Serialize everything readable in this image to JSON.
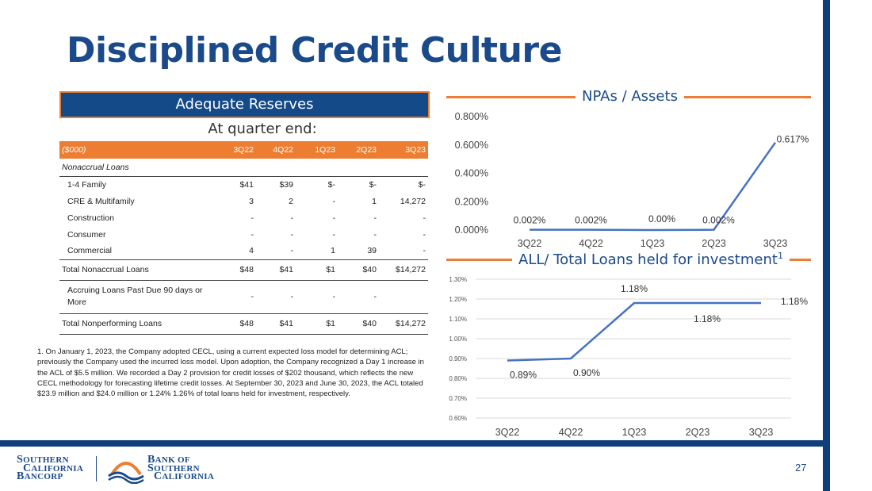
{
  "title": "Disciplined Credit Culture",
  "reserves_label": "Adequate Reserves",
  "quarter_end_label": "At quarter end:",
  "table": {
    "header": [
      "($000)",
      "3Q22",
      "4Q22",
      "1Q23",
      "2Q23",
      "3Q23"
    ],
    "section_label": "Nonaccrual Loans",
    "rows": [
      {
        "label": "1-4 Family",
        "values": [
          "$41",
          "$39",
          "$-",
          "$-",
          "$-"
        ]
      },
      {
        "label": "CRE & Multifamily",
        "values": [
          "3",
          "2",
          "-",
          "1",
          "14,272"
        ]
      },
      {
        "label": "Construction",
        "values": [
          "-",
          "-",
          "-",
          "-",
          "-"
        ]
      },
      {
        "label": "Consumer",
        "values": [
          "-",
          "-",
          "-",
          "-",
          "-"
        ]
      },
      {
        "label": "Commercial",
        "values": [
          "4",
          "-",
          "1",
          "39",
          "-"
        ]
      }
    ],
    "total_nonaccrual": {
      "label": "Total Nonaccrual Loans",
      "values": [
        "$48",
        "$41",
        "$1",
        "$40",
        "$14,272"
      ]
    },
    "accruing": {
      "label": "Accruing Loans Past Due 90 days or More",
      "values": [
        "-",
        "-",
        "-",
        "-",
        ""
      ]
    },
    "total_nonperforming": {
      "label": "Total Nonperforming Loans",
      "values": [
        "$48",
        "$41",
        "$1",
        "$40",
        "$14,272"
      ]
    }
  },
  "footnote": "1. On January 1, 2023, the Company adopted CECL, using a current expected loss model for determining ACL; previously the Company used the incurred loss model. Upon adoption, the Company recognized a Day 1 increase in the ACL of $5.5 million. We recorded a Day 2 provision for credit losses of $202 thousand, which reflects the new CECL methodology for forecasting lifetime credit losses. At September 30, 2023 and June 30, 2023, the ACL totaled $23.9 million and $24.0 million or 1.24% 1.26% of total loans held for investment, respectively.",
  "chart_data": [
    {
      "type": "line",
      "title": "NPAs / Assets",
      "categories": [
        "3Q22",
        "4Q22",
        "1Q23",
        "2Q23",
        "3Q23"
      ],
      "values": [
        0.002,
        0.002,
        0.0,
        0.002,
        0.617
      ],
      "data_labels": [
        "0.002%",
        "0.002%",
        "0.00%",
        "0.002%",
        "0.617%"
      ],
      "yticks": [
        "0.000%",
        "0.200%",
        "0.400%",
        "0.600%",
        "0.800%"
      ],
      "ylim": [
        0,
        0.8
      ],
      "color": "#4472c4"
    },
    {
      "type": "line",
      "title": "ALL/ Total Loans held for investment",
      "title_superscript": "1",
      "categories": [
        "3Q22",
        "4Q22",
        "1Q23",
        "2Q23",
        "3Q23"
      ],
      "values": [
        0.89,
        0.9,
        1.18,
        1.18,
        1.18
      ],
      "data_labels": [
        "0.89%",
        "0.90%",
        "1.18%",
        "1.18%",
        "1.18%"
      ],
      "yticks": [
        "0.60%",
        "0.70%",
        "0.80%",
        "0.90%",
        "1.00%",
        "1.10%",
        "1.20%",
        "1.30%"
      ],
      "ylim": [
        0.6,
        1.3
      ],
      "grid": true,
      "color": "#4472c4"
    }
  ],
  "page_number": "27",
  "logo_left": {
    "line1_cap": "S",
    "line1": "OUTHERN",
    "line2_cap": "C",
    "line2": "ALIFORNIA",
    "line3_cap": "B",
    "line3": "ANCORP"
  },
  "logo_right": {
    "line1_cap": "B",
    "line1": "ANK OF",
    "line2_cap": "S",
    "line2": "OUTHERN",
    "line3_cap": "C",
    "line3": "ALIFORNIA"
  },
  "colors": {
    "navy": "#134a87",
    "orange": "#ed7d31",
    "line": "#4472c4"
  }
}
